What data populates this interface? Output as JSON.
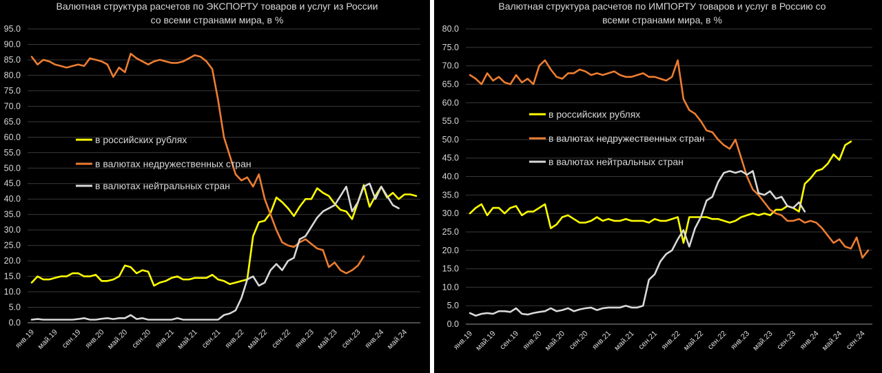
{
  "chart_data": [
    {
      "type": "line",
      "title_lines": [
        "Валютная структура расчетов по ЭКСПОРТУ товаров и услуг из России",
        "со всеми странами мира, в %"
      ],
      "ylim": [
        0,
        95
      ],
      "yticks": [
        "0.0",
        "5.0",
        "10.0",
        "15.0",
        "20.0",
        "25.0",
        "30.0",
        "35.0",
        "40.0",
        "45.0",
        "50.0",
        "55.0",
        "60.0",
        "65.0",
        "70.0",
        "75.0",
        "80.0",
        "85.0",
        "90.0",
        "95.0"
      ],
      "x_tick_labels": [
        "янв.19",
        "май.19",
        "сен.19",
        "янв.20",
        "май.20",
        "сен.20",
        "янв.21",
        "май.21",
        "сен.21",
        "янв.22",
        "май.22",
        "сен.22",
        "янв.23",
        "май.23",
        "сен.23",
        "янв.24",
        "май.24",
        "сен.24"
      ],
      "x_start": "янв.19",
      "colors": {
        "rub": "#ffff00",
        "unfriendly": "#ed7d31",
        "neutral": "#d9d9d9"
      },
      "series": [
        {
          "name": "в российских рублях",
          "color": "#ffff00",
          "values": [
            13,
            15,
            14,
            14,
            14.5,
            15,
            15,
            16,
            16,
            15,
            15,
            15.5,
            13.5,
            13.5,
            14,
            15,
            18.5,
            18,
            16,
            17,
            16.5,
            12,
            13,
            13.5,
            14.5,
            15,
            14,
            14,
            14.5,
            14.5,
            14.5,
            15.5,
            14,
            13.5,
            12.5,
            13,
            13.5,
            14,
            28,
            32.5,
            33,
            35.5,
            40.5,
            39,
            37,
            34.5,
            37.5,
            40,
            40,
            43.5,
            42,
            41,
            38.5,
            36.5,
            36,
            33.5,
            39,
            44.5,
            37.5,
            41,
            44,
            40.5,
            42,
            40,
            41.5,
            41.5,
            41
          ]
        },
        {
          "name": "в валютах недружественных стран",
          "color": "#ed7d31",
          "values": [
            86,
            83.5,
            85,
            84.5,
            83.5,
            83,
            82.5,
            83,
            83.5,
            83,
            85.5,
            85,
            84.5,
            83.5,
            79.5,
            82.5,
            81,
            87,
            85.5,
            84.5,
            83.5,
            84.5,
            85,
            84.5,
            84,
            84,
            84.5,
            85.5,
            86.5,
            86,
            84.5,
            82,
            72,
            60,
            54,
            48,
            46,
            47,
            44,
            48,
            40,
            35,
            30,
            26,
            25,
            24.5,
            26,
            27,
            25.5,
            24,
            23.5,
            18,
            19.5,
            17,
            16,
            17,
            18.5,
            21.5
          ]
        },
        {
          "name": "в валютах нейтральных стран",
          "color": "#d9d9d9",
          "values": [
            1,
            1.2,
            1,
            1,
            1,
            1,
            1,
            1,
            1.2,
            1.5,
            1,
            1,
            1.3,
            1.5,
            1.2,
            1.5,
            1.5,
            2.5,
            1.2,
            1.5,
            1,
            1,
            1,
            1,
            1,
            1.5,
            1,
            1,
            1,
            1,
            1,
            1,
            1,
            2.5,
            3,
            4,
            8,
            14,
            15,
            12,
            13,
            17,
            19,
            17,
            20,
            21,
            27,
            28,
            31,
            34,
            36,
            37,
            38,
            41,
            44,
            36,
            39,
            44,
            45,
            40,
            44,
            41,
            38,
            37
          ]
        }
      ]
    },
    {
      "type": "line",
      "title_lines": [
        "Валютная структура расчетов по ИМПОРТУ товаров и услуг в Россию со",
        "всеми странами мира, в %"
      ],
      "ylim": [
        0,
        80
      ],
      "yticks": [
        "0.0",
        "5.0",
        "10.0",
        "15.0",
        "20.0",
        "25.0",
        "30.0",
        "35.0",
        "40.0",
        "45.0",
        "50.0",
        "55.0",
        "60.0",
        "65.0",
        "70.0",
        "75.0",
        "80.0"
      ],
      "x_tick_labels": [
        "янв.19",
        "май.19",
        "сен.19",
        "янв.20",
        "май.20",
        "сен.20",
        "янв.21",
        "май.21",
        "сен.21",
        "янв.22",
        "май.22",
        "сен.22",
        "янв.23",
        "май.23",
        "сен.23",
        "янв.24",
        "май.24",
        "сен.24"
      ],
      "x_start": "янв.19",
      "colors": {
        "rub": "#ffff00",
        "unfriendly": "#ed7d31",
        "neutral": "#d9d9d9"
      },
      "series": [
        {
          "name": "в российских рублях",
          "color": "#ffff00",
          "values": [
            30,
            31.5,
            32.5,
            29.5,
            31.5,
            31.5,
            30,
            31.5,
            32,
            29.5,
            30.5,
            30.5,
            31.5,
            32.5,
            26,
            27,
            29,
            29.5,
            28.5,
            27.5,
            27.5,
            28,
            29,
            28,
            28.5,
            28,
            28,
            28.5,
            28,
            28,
            28,
            27.5,
            28.5,
            28,
            28,
            28.5,
            29,
            22,
            29,
            29,
            29,
            29,
            28.5,
            28.5,
            28,
            27.5,
            28,
            29,
            29.5,
            30,
            29.5,
            30,
            29.5,
            31,
            31,
            32,
            31.5,
            30.5,
            38,
            39.5,
            41.5,
            42,
            43.5,
            46,
            44.5,
            48.5,
            49.5
          ]
        },
        {
          "name": "в валютах недружественных стран",
          "color": "#ed7d31",
          "values": [
            67.5,
            66.5,
            65,
            68,
            66,
            67,
            65.5,
            65,
            67.5,
            65.5,
            66.5,
            65,
            70,
            71.5,
            69,
            67,
            66.5,
            68,
            68,
            69,
            68.5,
            67.5,
            68,
            67.5,
            68,
            68.5,
            67.5,
            67,
            67,
            67.5,
            68,
            67,
            67,
            66.5,
            66,
            67,
            71.5,
            61,
            58,
            57,
            55,
            52.5,
            52,
            50,
            48.5,
            47.5,
            50,
            45,
            40,
            36.5,
            35,
            33,
            31,
            30,
            29.5,
            28,
            28,
            28.5,
            27.5,
            28,
            27.5,
            26,
            24,
            22,
            23,
            21,
            20.5,
            23.5,
            18,
            20
          ]
        },
        {
          "name": "в валютах нейтральных стран",
          "color": "#d9d9d9",
          "values": [
            3,
            2.3,
            2.8,
            3,
            2.8,
            3.5,
            3.5,
            3.3,
            4.3,
            2.8,
            2.6,
            3,
            3.3,
            3.5,
            4.3,
            3.5,
            3.8,
            4.3,
            3.5,
            4,
            4.3,
            4.5,
            3.8,
            4.3,
            4.5,
            4.5,
            4.5,
            5,
            4.5,
            4.5,
            5,
            12,
            13.5,
            17,
            19,
            20,
            23,
            25.5,
            21,
            26,
            29,
            33.5,
            34.5,
            38.5,
            41,
            41.5,
            41,
            41.5,
            40.5,
            41.5,
            35.5,
            35,
            36,
            34,
            34.5,
            32,
            31.5,
            33,
            30.5
          ]
        }
      ]
    }
  ]
}
